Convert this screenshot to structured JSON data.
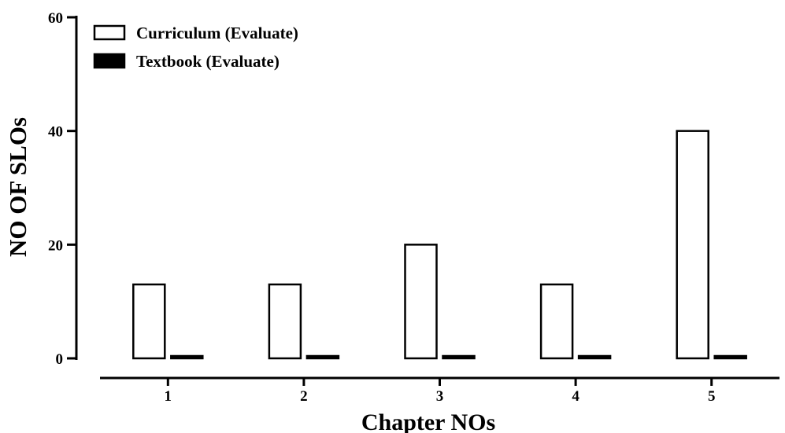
{
  "chart_data": {
    "type": "bar",
    "categories": [
      "1",
      "2",
      "3",
      "4",
      "5"
    ],
    "series": [
      {
        "name": "Curriculum (Evaluate)",
        "values": [
          13,
          13,
          20,
          13,
          40
        ],
        "fill": "#ffffff",
        "stroke": "#000000"
      },
      {
        "name": "Textbook (Evaluate)",
        "values": [
          0,
          0,
          0,
          0,
          0
        ],
        "fill": "#000000",
        "stroke": "#000000"
      }
    ],
    "xlabel": "Chapter NOs",
    "ylabel": "NO OF SLOs",
    "ylim": [
      0,
      60
    ],
    "yticks": [
      "0",
      "20",
      "40",
      "60"
    ],
    "grid": false,
    "legend_position": "top-left"
  }
}
